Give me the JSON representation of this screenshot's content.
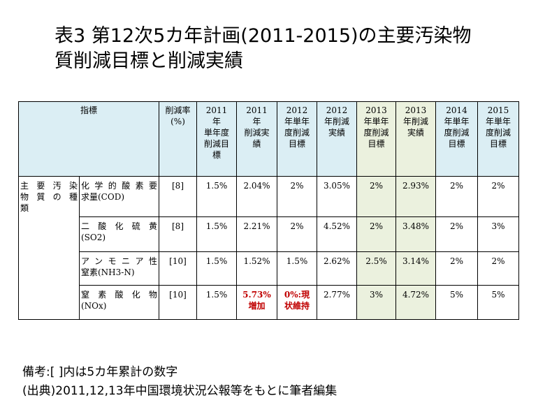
{
  "title": {
    "line1": "表3 第12次5カ年計画(2011-2015)の主要汚染物",
    "line2": "質削減目標と削減実績"
  },
  "table": {
    "headers": {
      "indicator": "指標",
      "rate": [
        "削減率",
        "(%)"
      ],
      "y2011_target": [
        "2011",
        "年",
        "単年度",
        "削減目",
        "標"
      ],
      "y2011_actual": [
        "2011",
        "年",
        "削減実",
        "績"
      ],
      "y2012_target": [
        "2012",
        "年単年",
        "度削減",
        "目標"
      ],
      "y2012_actual": [
        "2012",
        "年削減",
        "実績"
      ],
      "y2013_target": [
        "2013",
        "年単年",
        "度削減",
        "目標"
      ],
      "y2013_actual": [
        "2013",
        "年削減",
        "実績"
      ],
      "y2014_target": [
        "2014",
        "年単年",
        "度削減",
        "目標"
      ],
      "y2015_target": [
        "2015",
        "年単年",
        "度削減",
        "目標"
      ]
    },
    "group_label": [
      "主要汚染",
      "物質の種",
      "類"
    ],
    "rows": [
      {
        "name": [
          "化学的酸素要",
          "求量(COD)"
        ],
        "rate": "[8]",
        "y2011_target": "1.5%",
        "y2011_actual": "2.04%",
        "y2012_target": "2%",
        "y2012_actual": "3.05%",
        "y2013_target": "2%",
        "y2013_actual": "2.93%",
        "y2014_target": "2%",
        "y2015_target": "2%"
      },
      {
        "name": [
          "二酸化硫黄",
          "(SO2)"
        ],
        "rate": "[8]",
        "y2011_target": "1.5%",
        "y2011_actual": "2.21%",
        "y2012_target": "2%",
        "y2012_actual": "4.52%",
        "y2013_target": "2%",
        "y2013_actual": "3.48%",
        "y2014_target": "2%",
        "y2015_target": "3%"
      },
      {
        "name": [
          "アンモニア性",
          "窒素(NH3-N)"
        ],
        "rate": "[10]",
        "y2011_target": "1.5%",
        "y2011_actual": "1.52%",
        "y2012_target": "1.5%",
        "y2012_actual": "2.62%",
        "y2013_target": "2.5%",
        "y2013_actual": "3.14%",
        "y2014_target": "2%",
        "y2015_target": "2%"
      },
      {
        "name": [
          "窒素酸化物",
          "(NOx)"
        ],
        "rate": "[10]",
        "y2011_target": "1.5%",
        "y2011_actual": [
          "5.73%",
          "増加"
        ],
        "y2012_target": [
          "0%:現",
          "状維持"
        ],
        "y2012_actual": "2.77%",
        "y2013_target": "3%",
        "y2013_actual": "4.72%",
        "y2014_target": "5%",
        "y2015_target": "5%"
      }
    ]
  },
  "notes": {
    "line1": "備考:[ ]内は5カ年累計の数字",
    "line2": "(出典)2011,12,13年中国環境状況公報等をもとに筆者編集"
  },
  "colors": {
    "header_bg": "#dbeef4",
    "highlight_2013": "#ebf1de",
    "red_text": "#c00000"
  }
}
